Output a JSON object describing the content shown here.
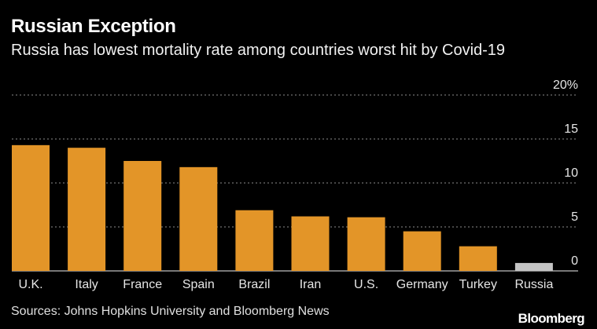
{
  "chart_data": {
    "type": "bar",
    "title": "Russian Exception",
    "subtitle": "Russia has lowest mortality rate among countries worst hit by Covid-19",
    "categories": [
      "U.K.",
      "Italy",
      "France",
      "Spain",
      "Brazil",
      "Iran",
      "U.S.",
      "Germany",
      "Turkey",
      "Russia"
    ],
    "values": [
      14.3,
      14.0,
      12.5,
      11.8,
      6.9,
      6.2,
      6.1,
      4.5,
      2.8,
      0.9
    ],
    "highlight": [
      "Russia"
    ],
    "ylim": [
      0,
      20
    ],
    "yticks": [
      0,
      5,
      10,
      15,
      20
    ],
    "ytick_labels": [
      "0",
      "5",
      "10",
      "15",
      "20%"
    ],
    "grid": true,
    "xlabel": "",
    "ylabel": ""
  },
  "colors": {
    "bar": "#e39528",
    "highlight": "#c4c4c4",
    "grid": "#8c8c8c",
    "axis": "#bfbfbf"
  },
  "source": "Sources: Johns Hopkins University and Bloomberg News",
  "brand": "Bloomberg"
}
